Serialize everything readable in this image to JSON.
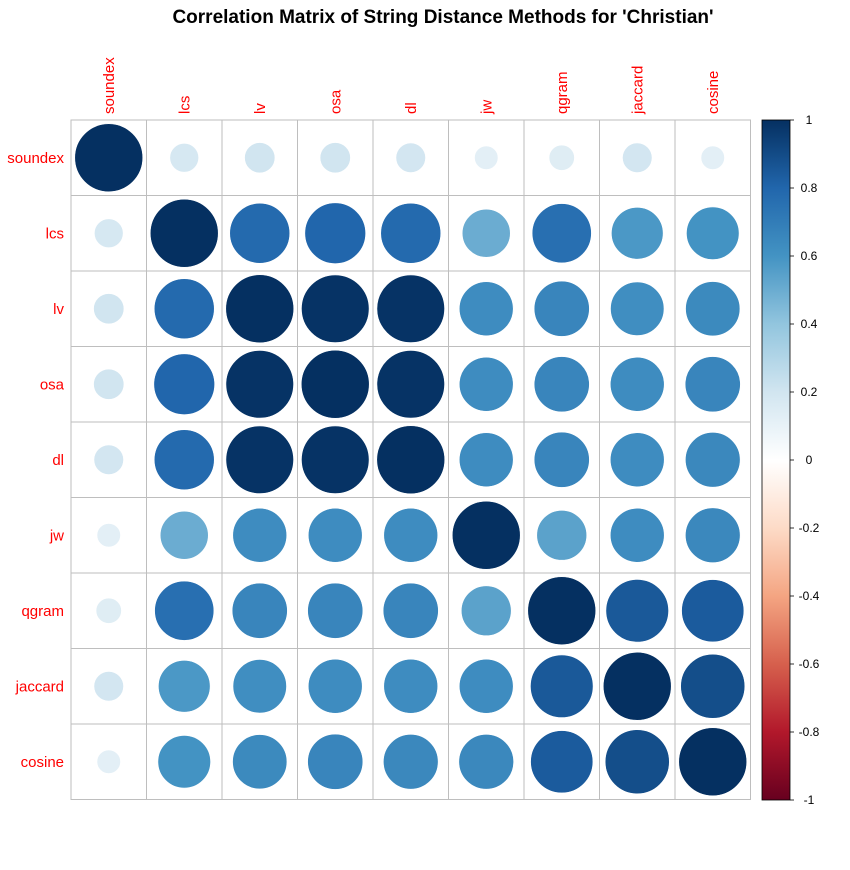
{
  "chart_data": {
    "type": "heatmap",
    "subtype": "correlation-circles",
    "title": "Correlation Matrix of String Distance Methods for 'Christian'",
    "variables": [
      "soundex",
      "lcs",
      "lv",
      "osa",
      "dl",
      "jw",
      "qgram",
      "jaccard",
      "cosine"
    ],
    "matrix": [
      [
        1.0,
        0.18,
        0.2,
        0.2,
        0.19,
        0.12,
        0.14,
        0.19,
        0.12
      ],
      [
        0.18,
        1.0,
        0.78,
        0.8,
        0.78,
        0.5,
        0.76,
        0.58,
        0.6
      ],
      [
        0.2,
        0.78,
        1.0,
        0.99,
        0.99,
        0.63,
        0.66,
        0.62,
        0.64
      ],
      [
        0.2,
        0.8,
        0.99,
        1.0,
        0.99,
        0.63,
        0.66,
        0.63,
        0.66
      ],
      [
        0.19,
        0.78,
        0.99,
        0.99,
        1.0,
        0.63,
        0.66,
        0.63,
        0.65
      ],
      [
        0.12,
        0.5,
        0.63,
        0.63,
        0.63,
        1.0,
        0.54,
        0.63,
        0.65
      ],
      [
        0.14,
        0.76,
        0.66,
        0.66,
        0.66,
        0.54,
        1.0,
        0.85,
        0.84
      ],
      [
        0.19,
        0.58,
        0.62,
        0.63,
        0.63,
        0.63,
        0.85,
        1.0,
        0.89
      ],
      [
        0.12,
        0.6,
        0.64,
        0.66,
        0.65,
        0.65,
        0.84,
        0.89,
        1.0
      ]
    ],
    "colorbar": {
      "range": [
        -1,
        1
      ],
      "ticks": [
        "1",
        "0.8",
        "0.6",
        "0.4",
        "0.2",
        "0",
        "-0.2",
        "-0.4",
        "-0.6",
        "-0.8",
        "-1"
      ],
      "colors": [
        "#67001F",
        "#B2182B",
        "#D6604D",
        "#F4A582",
        "#FDDBC7",
        "#FFFFFF",
        "#D1E5F0",
        "#92C5DE",
        "#4393C3",
        "#2166AC",
        "#053061"
      ]
    },
    "label_color": "#FF0000",
    "grid_color": "#BEBEBE",
    "legend_position": "right"
  }
}
